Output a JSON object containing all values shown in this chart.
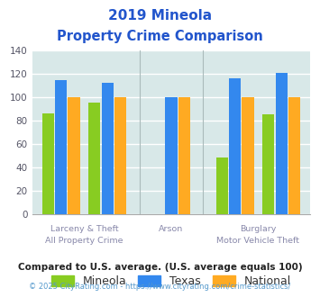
{
  "title_line1": "2019 Mineola",
  "title_line2": "Property Crime Comparison",
  "categories": [
    "All Property Crime",
    "Larceny & Theft",
    "Arson",
    "Burglary",
    "Motor Vehicle Theft"
  ],
  "series": {
    "Mineola": [
      86,
      95,
      null,
      48,
      85
    ],
    "Texas": [
      115,
      112,
      100,
      116,
      121
    ],
    "National": [
      100,
      100,
      100,
      100,
      100
    ]
  },
  "colors": {
    "Mineola": "#88cc22",
    "Texas": "#3388ee",
    "National": "#ffaa22"
  },
  "ylim": [
    0,
    140
  ],
  "yticks": [
    0,
    20,
    40,
    60,
    80,
    100,
    120,
    140
  ],
  "background_color": "#d8e8e8",
  "grid_color": "#ffffff",
  "title_color": "#2255cc",
  "xlabel_color": "#8888aa",
  "footnote1": "Compared to U.S. average. (U.S. average equals 100)",
  "footnote2": "© 2025 CityRating.com - https://www.cityrating.com/crime-statistics/",
  "footnote1_color": "#222222",
  "footnote2_color": "#5599cc"
}
